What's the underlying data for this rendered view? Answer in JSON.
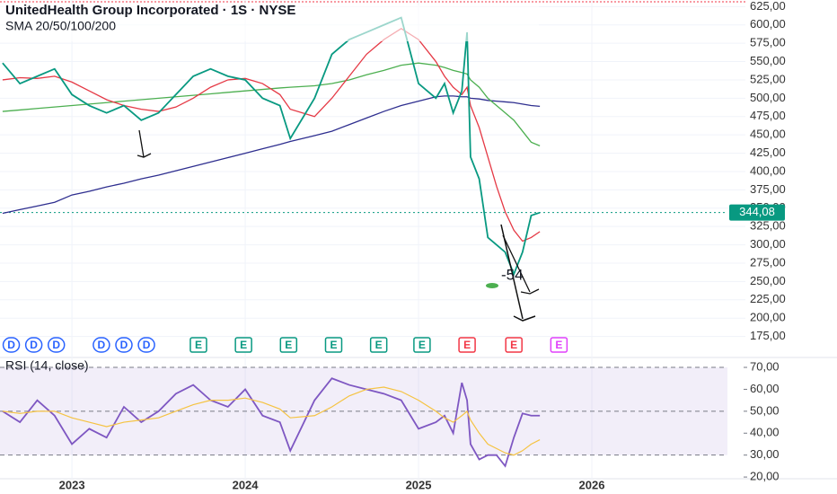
{
  "chart_data": {
    "type": "line",
    "title": "UnitedHealth Group Incorporated · 1S · NYSE",
    "subtitle": "SMA 20/50/100/200",
    "rsi_title": "RSI (14, close)",
    "annotation": "-54",
    "last_price": {
      "value": 344.08,
      "label": "344,08"
    },
    "xlim": [
      2022.585,
      2026.886
    ],
    "xticks": [
      2023,
      2024,
      2025,
      2026
    ],
    "ylim": [
      150,
      634
    ],
    "yticks": [
      {
        "value": 175,
        "label": "175,00"
      },
      {
        "value": 200,
        "label": "200,00"
      },
      {
        "value": 225,
        "label": "225,00"
      },
      {
        "value": 250,
        "label": "250,00"
      },
      {
        "value": 275,
        "label": "275,00"
      },
      {
        "value": 300,
        "label": "300,00"
      },
      {
        "value": 325,
        "label": "325,00"
      },
      {
        "value": 350,
        "label": "350,00"
      },
      {
        "value": 375,
        "label": "375,00"
      },
      {
        "value": 400,
        "label": "400,00"
      },
      {
        "value": 425,
        "label": "425,00"
      },
      {
        "value": 450,
        "label": "450,00"
      },
      {
        "value": 475,
        "label": "475,00"
      },
      {
        "value": 500,
        "label": "500,00"
      },
      {
        "value": 525,
        "label": "525,00"
      },
      {
        "value": 550,
        "label": "550,00"
      },
      {
        "value": 575,
        "label": "575,00"
      },
      {
        "value": 600,
        "label": "600,00"
      },
      {
        "value": 625,
        "label": "625,00"
      }
    ],
    "x": [
      2022.6,
      2022.7,
      2022.8,
      2022.9,
      2023.0,
      2023.1,
      2023.2,
      2023.3,
      2023.4,
      2023.5,
      2023.6,
      2023.7,
      2023.8,
      2023.9,
      2024.0,
      2024.1,
      2024.2,
      2024.26,
      2024.4,
      2024.5,
      2024.6,
      2024.7,
      2024.8,
      2024.9,
      2025.0,
      2025.1,
      2025.15,
      2025.2,
      2025.25,
      2025.28,
      2025.3,
      2025.35,
      2025.4,
      2025.45,
      2025.5,
      2025.55,
      2025.6,
      2025.65,
      2025.7
    ],
    "series": [
      {
        "color": "#089981",
        "values": [
          548,
          520,
          530,
          540,
          505,
          490,
          480,
          490,
          470,
          480,
          505,
          530,
          540,
          530,
          525,
          500,
          490,
          445,
          500,
          560,
          580,
          590,
          600,
          610,
          520,
          500,
          520,
          480,
          510,
          590,
          420,
          390,
          310,
          300,
          290,
          260,
          290,
          340,
          344
        ]
      },
      {
        "color": "#e53945",
        "values": [
          525,
          528,
          527,
          530,
          522,
          510,
          498,
          490,
          485,
          482,
          488,
          500,
          515,
          525,
          527,
          520,
          505,
          485,
          475,
          500,
          530,
          560,
          580,
          595,
          580,
          550,
          530,
          515,
          505,
          515,
          490,
          460,
          420,
          380,
          345,
          320,
          305,
          310,
          318
        ]
      },
      {
        "color": "#4caf50",
        "values": [
          482,
          484,
          486,
          488,
          490,
          492,
          494,
          496,
          498,
          500,
          502,
          504,
          506,
          508,
          510,
          512,
          514,
          515,
          517,
          520,
          525,
          532,
          538,
          545,
          548,
          545,
          542,
          538,
          535,
          533,
          525,
          515,
          500,
          490,
          480,
          470,
          455,
          440,
          435
        ]
      },
      {
        "color": "#2e2e8f",
        "values": [
          343,
          348,
          353,
          358,
          368,
          373,
          379,
          384,
          390,
          395,
          401,
          407,
          413,
          419,
          425,
          431,
          437,
          441,
          449,
          455,
          464,
          473,
          482,
          490,
          496,
          502,
          503,
          503,
          502,
          502,
          500,
          499,
          497,
          496,
          495,
          494,
          492,
          490,
          489
        ]
      }
    ],
    "events": [
      {
        "x": 2022.65,
        "label": "D",
        "color": "#2962ff"
      },
      {
        "x": 2022.78,
        "label": "D",
        "color": "#2962ff"
      },
      {
        "x": 2022.91,
        "label": "D",
        "color": "#2962ff"
      },
      {
        "x": 2023.17,
        "label": "D",
        "color": "#2962ff"
      },
      {
        "x": 2023.3,
        "label": "D",
        "color": "#2962ff"
      },
      {
        "x": 2023.43,
        "label": "D",
        "color": "#2962ff"
      },
      {
        "x": 2023.73,
        "label": "E",
        "color": "#089981"
      },
      {
        "x": 2023.99,
        "label": "E",
        "color": "#089981"
      },
      {
        "x": 2024.25,
        "label": "E",
        "color": "#089981"
      },
      {
        "x": 2024.51,
        "label": "E",
        "color": "#089981"
      },
      {
        "x": 2024.77,
        "label": "E",
        "color": "#089981"
      },
      {
        "x": 2025.02,
        "label": "E",
        "color": "#089981"
      },
      {
        "x": 2025.28,
        "label": "E",
        "color": "#f23645"
      },
      {
        "x": 2025.55,
        "label": "E",
        "color": "#f23645"
      },
      {
        "x": 2025.81,
        "label": "E",
        "color": "#e040fb"
      }
    ],
    "rsi_ylim": [
      18.4,
      73.7
    ],
    "rsi_yticks": [
      {
        "value": 20,
        "label": "20,00"
      },
      {
        "value": 30,
        "label": "30,00"
      },
      {
        "value": 40,
        "label": "40,00"
      },
      {
        "value": 50,
        "label": "50,00"
      },
      {
        "value": 60,
        "label": "60,00"
      },
      {
        "value": 70,
        "label": "70,00"
      }
    ],
    "rsi_band": [
      30,
      70
    ],
    "rsi_mid": 50,
    "rsi": [
      {
        "color": "#7e57c2",
        "values": [
          50,
          45,
          55,
          48,
          35,
          42,
          38,
          52,
          45,
          50,
          58,
          62,
          55,
          52,
          60,
          48,
          45,
          32,
          55,
          65,
          62,
          60,
          58,
          55,
          42,
          45,
          48,
          40,
          63,
          55,
          35,
          28,
          30,
          30,
          25,
          38,
          49,
          48,
          48
        ]
      },
      {
        "color": "#f5c342",
        "values": [
          50,
          49,
          50,
          50,
          47,
          45,
          43,
          45,
          46,
          47,
          50,
          53,
          55,
          55,
          56,
          54,
          51,
          47,
          48,
          52,
          57,
          60,
          61,
          59,
          55,
          50,
          47,
          45,
          48,
          50,
          46,
          40,
          35,
          33,
          31,
          30,
          32,
          35,
          37
        ]
      }
    ]
  }
}
